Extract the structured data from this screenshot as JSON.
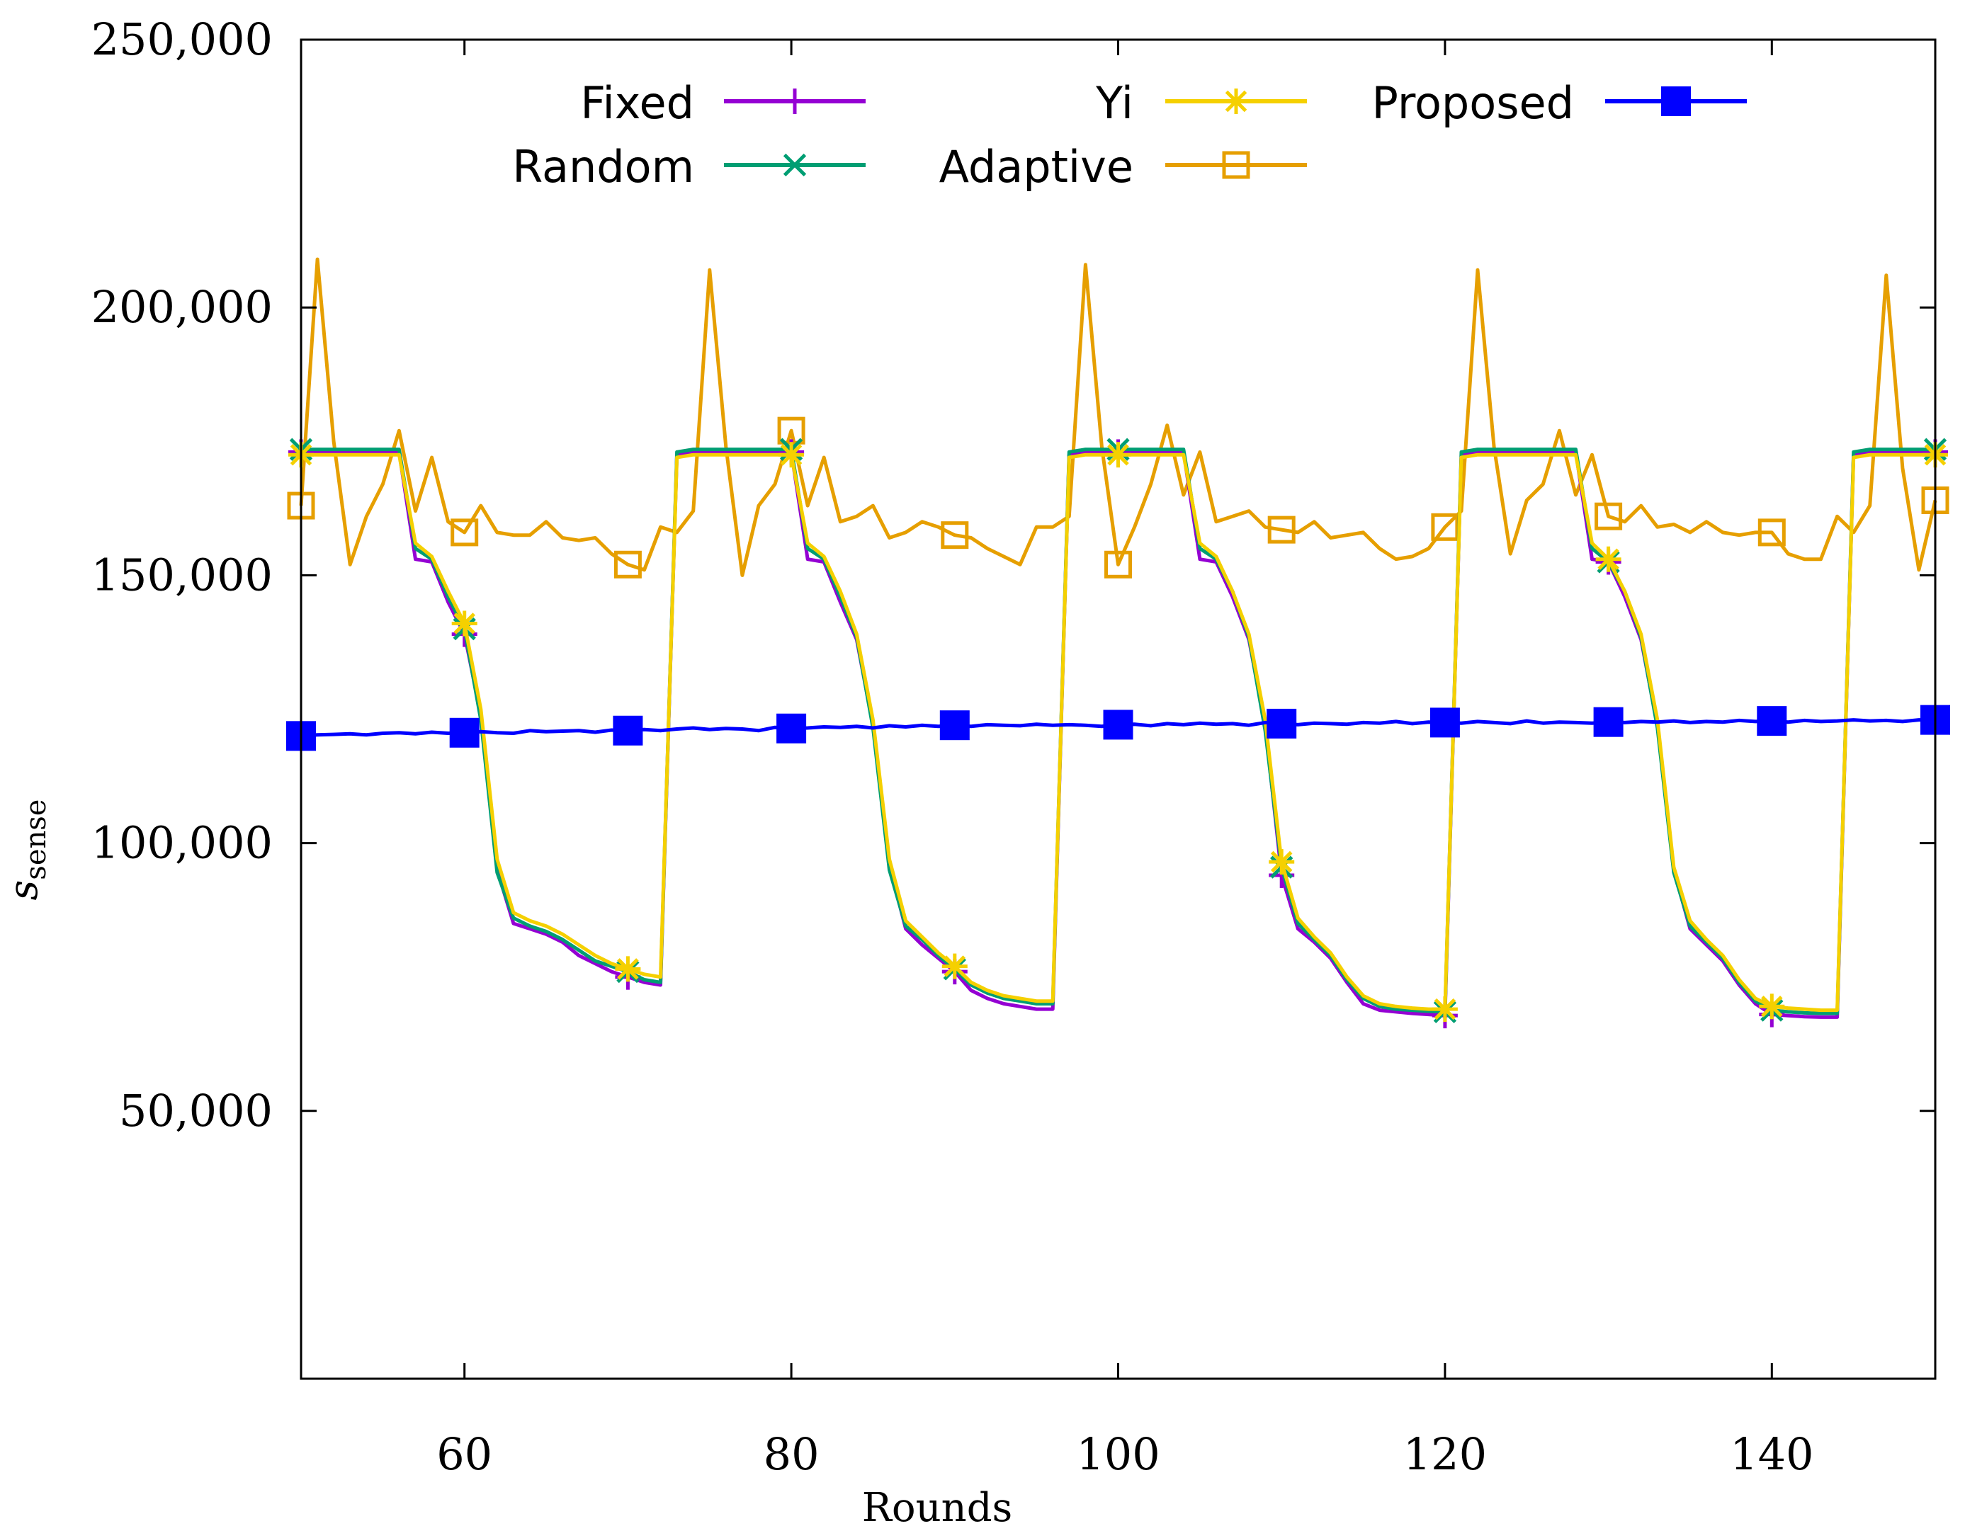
{
  "chart_data": {
    "type": "line",
    "title": "",
    "xlabel": "Rounds",
    "ylabel_main": "s",
    "ylabel_sub": "sense",
    "xlim": [
      50,
      150
    ],
    "ylim": [
      0,
      250000
    ],
    "xticks": [
      60,
      80,
      100,
      120,
      140
    ],
    "xtick_labels": [
      "60",
      "80",
      "100",
      "120",
      "140"
    ],
    "yticks": [
      50000,
      100000,
      150000,
      200000,
      250000
    ],
    "ytick_labels": [
      "50,000",
      "100,000",
      "150,000",
      "200,000",
      "250,000"
    ],
    "legend": [
      "Fixed",
      "Random",
      "Yi",
      "Adaptive",
      "Proposed"
    ],
    "legend_position": "top",
    "colors": {
      "Fixed": "#9400d3",
      "Random": "#009e73",
      "Yi": "#f5d000",
      "Adaptive": "#e69f00",
      "Proposed": "#0000ff"
    },
    "series": [
      {
        "name": "Fixed",
        "marker": "plus",
        "marker_every": 10,
        "x": [
          50,
          51,
          52,
          53,
          54,
          55,
          56,
          57,
          58,
          59,
          60,
          61,
          62,
          63,
          64,
          65,
          66,
          67,
          68,
          69,
          70,
          71,
          72,
          73,
          74,
          75,
          76,
          77,
          78,
          79,
          80,
          81,
          82,
          83,
          84,
          85,
          86,
          87,
          88,
          89,
          90,
          91,
          92,
          93,
          94,
          95,
          96,
          97,
          98,
          99,
          100,
          101,
          102,
          103,
          104,
          105,
          106,
          107,
          108,
          109,
          110,
          111,
          112,
          113,
          114,
          115,
          116,
          117,
          118,
          119,
          120,
          121,
          122,
          123,
          124,
          125,
          126,
          127,
          128,
          129,
          130,
          131,
          132,
          133,
          134,
          135,
          136,
          137,
          138,
          139,
          140,
          141,
          142,
          143,
          144,
          145,
          146,
          147,
          148,
          149,
          150
        ],
        "y": [
          173000,
          173000,
          173000,
          173000,
          173000,
          173000,
          173000,
          153000,
          152500,
          145000,
          139000,
          124000,
          95000,
          85000,
          84000,
          83000,
          81500,
          79000,
          77500,
          76000,
          75000,
          74000,
          73500,
          172500,
          173000,
          173000,
          173000,
          173000,
          173000,
          173000,
          173000,
          153000,
          152500,
          145000,
          138000,
          122000,
          96000,
          84000,
          81000,
          78500,
          76000,
          72500,
          71000,
          70000,
          69500,
          69000,
          69000,
          172500,
          173000,
          173000,
          173000,
          173000,
          173000,
          173000,
          173000,
          153000,
          152500,
          146000,
          138000,
          122000,
          94000,
          84000,
          81500,
          78500,
          74000,
          70000,
          68800,
          68500,
          68200,
          68000,
          67800,
          172500,
          173000,
          173000,
          173000,
          173000,
          173000,
          173000,
          173000,
          153000,
          152500,
          146000,
          138000,
          122000,
          95000,
          84000,
          81000,
          78000,
          73500,
          70000,
          68000,
          67800,
          67600,
          67500,
          67500,
          172500,
          173000,
          173000,
          173000,
          173000,
          173000
        ]
      },
      {
        "name": "Random",
        "marker": "cross",
        "marker_every": 10,
        "x": [
          50,
          51,
          52,
          53,
          54,
          55,
          56,
          57,
          58,
          59,
          60,
          61,
          62,
          63,
          64,
          65,
          66,
          67,
          68,
          69,
          70,
          71,
          72,
          73,
          74,
          75,
          76,
          77,
          78,
          79,
          80,
          81,
          82,
          83,
          84,
          85,
          86,
          87,
          88,
          89,
          90,
          91,
          92,
          93,
          94,
          95,
          96,
          97,
          98,
          99,
          100,
          101,
          102,
          103,
          104,
          105,
          106,
          107,
          108,
          109,
          110,
          111,
          112,
          113,
          114,
          115,
          116,
          117,
          118,
          119,
          120,
          121,
          122,
          123,
          124,
          125,
          126,
          127,
          128,
          129,
          130,
          131,
          132,
          133,
          134,
          135,
          136,
          137,
          138,
          139,
          140,
          141,
          142,
          143,
          144,
          145,
          146,
          147,
          148,
          149,
          150
        ],
        "y": [
          173500,
          173500,
          173500,
          173500,
          173500,
          173500,
          173500,
          155000,
          153000,
          146000,
          140000,
          123000,
          94500,
          86000,
          84500,
          83500,
          82000,
          80000,
          78000,
          77000,
          76000,
          74500,
          74000,
          173000,
          173500,
          173500,
          173500,
          173500,
          173500,
          173500,
          173500,
          155000,
          153000,
          146000,
          138500,
          121500,
          95000,
          84500,
          82000,
          79000,
          76500,
          73500,
          72000,
          71000,
          70500,
          70000,
          70000,
          173000,
          173500,
          173500,
          173500,
          173500,
          173500,
          173500,
          173500,
          155000,
          153000,
          147000,
          138500,
          121000,
          95500,
          85000,
          82000,
          79000,
          74500,
          71000,
          69500,
          69000,
          68800,
          68600,
          68500,
          173000,
          173500,
          173500,
          173500,
          173500,
          173500,
          173500,
          173500,
          155000,
          152500,
          147000,
          138500,
          121500,
          94500,
          84500,
          81500,
          78500,
          74000,
          70500,
          68800,
          68500,
          68300,
          68200,
          68200,
          173000,
          173500,
          173500,
          173500,
          173500,
          173500
        ]
      },
      {
        "name": "Yi",
        "marker": "star",
        "marker_every": 10,
        "x": [
          50,
          51,
          52,
          53,
          54,
          55,
          56,
          57,
          58,
          59,
          60,
          61,
          62,
          63,
          64,
          65,
          66,
          67,
          68,
          69,
          70,
          71,
          72,
          73,
          74,
          75,
          76,
          77,
          78,
          79,
          80,
          81,
          82,
          83,
          84,
          85,
          86,
          87,
          88,
          89,
          90,
          91,
          92,
          93,
          94,
          95,
          96,
          97,
          98,
          99,
          100,
          101,
          102,
          103,
          104,
          105,
          106,
          107,
          108,
          109,
          110,
          111,
          112,
          113,
          114,
          115,
          116,
          117,
          118,
          119,
          120,
          121,
          122,
          123,
          124,
          125,
          126,
          127,
          128,
          129,
          130,
          131,
          132,
          133,
          134,
          135,
          136,
          137,
          138,
          139,
          140,
          141,
          142,
          143,
          144,
          145,
          146,
          147,
          148,
          149,
          150
        ],
        "y": [
          172500,
          172500,
          172500,
          172500,
          172500,
          172500,
          172500,
          156000,
          153500,
          147000,
          141000,
          125000,
          97000,
          87000,
          85500,
          84500,
          83000,
          81000,
          79000,
          77500,
          76500,
          75500,
          75000,
          172000,
          172500,
          172500,
          172500,
          172500,
          172500,
          172500,
          172500,
          156000,
          153500,
          147000,
          139000,
          123000,
          97000,
          85500,
          82500,
          79500,
          77000,
          74000,
          72500,
          71500,
          71000,
          70500,
          70500,
          172000,
          172500,
          172500,
          172500,
          172500,
          172500,
          172500,
          172500,
          156000,
          153500,
          147000,
          139000,
          123000,
          96500,
          86000,
          82500,
          79500,
          75000,
          71500,
          70000,
          69500,
          69200,
          69000,
          69000,
          172000,
          172500,
          172500,
          172500,
          172500,
          172500,
          172500,
          172500,
          156000,
          153000,
          147000,
          139000,
          123000,
          95500,
          85500,
          82000,
          79000,
          74500,
          71000,
          69500,
          69200,
          69000,
          68800,
          68800,
          172000,
          172500,
          172500,
          172500,
          172500,
          172500
        ]
      },
      {
        "name": "Adaptive",
        "marker": "square-open",
        "marker_every": 10,
        "x": [
          50,
          51,
          52,
          53,
          54,
          55,
          56,
          57,
          58,
          59,
          60,
          61,
          62,
          63,
          64,
          65,
          66,
          67,
          68,
          69,
          70,
          71,
          72,
          73,
          74,
          75,
          76,
          77,
          78,
          79,
          80,
          81,
          82,
          83,
          84,
          85,
          86,
          87,
          88,
          89,
          90,
          91,
          92,
          93,
          94,
          95,
          96,
          97,
          98,
          99,
          100,
          101,
          102,
          103,
          104,
          105,
          106,
          107,
          108,
          109,
          110,
          111,
          112,
          113,
          114,
          115,
          116,
          117,
          118,
          119,
          120,
          121,
          122,
          123,
          124,
          125,
          126,
          127,
          128,
          129,
          130,
          131,
          132,
          133,
          134,
          135,
          136,
          137,
          138,
          139,
          140,
          141,
          142,
          143,
          144,
          145,
          146,
          147,
          148,
          149,
          150
        ],
        "y": [
          163000,
          209000,
          175000,
          152000,
          161000,
          167000,
          177000,
          162000,
          172000,
          160000,
          158000,
          163000,
          158000,
          157500,
          157500,
          160000,
          157000,
          156500,
          157000,
          154000,
          152000,
          151000,
          159000,
          158000,
          162000,
          207000,
          174000,
          150000,
          163000,
          167000,
          177000,
          163000,
          172000,
          160000,
          161000,
          163000,
          157000,
          158000,
          160000,
          159000,
          157500,
          157000,
          155000,
          153500,
          152000,
          159000,
          159000,
          161000,
          208000,
          174000,
          152000,
          159000,
          167000,
          178000,
          165000,
          173000,
          160000,
          161000,
          162000,
          159000,
          158500,
          158000,
          160000,
          157000,
          157500,
          158000,
          155000,
          153000,
          153500,
          155000,
          159000,
          162000,
          207000,
          174000,
          154000,
          164000,
          167000,
          177000,
          165000,
          172500,
          161000,
          160000,
          163000,
          159000,
          159500,
          158000,
          160000,
          158000,
          157500,
          158000,
          158000,
          154000,
          153000,
          153000,
          161000,
          158000,
          163000,
          206000,
          170000,
          151000,
          164000
        ]
      },
      {
        "name": "Proposed",
        "marker": "square-filled",
        "marker_every": 10,
        "x": [
          50,
          51,
          52,
          53,
          54,
          55,
          56,
          57,
          58,
          59,
          60,
          61,
          62,
          63,
          64,
          65,
          66,
          67,
          68,
          69,
          70,
          71,
          72,
          73,
          74,
          75,
          76,
          77,
          78,
          79,
          80,
          81,
          82,
          83,
          84,
          85,
          86,
          87,
          88,
          89,
          90,
          91,
          92,
          93,
          94,
          95,
          96,
          97,
          98,
          99,
          100,
          101,
          102,
          103,
          104,
          105,
          106,
          107,
          108,
          109,
          110,
          111,
          112,
          113,
          114,
          115,
          116,
          117,
          118,
          119,
          120,
          121,
          122,
          123,
          124,
          125,
          126,
          127,
          128,
          129,
          130,
          131,
          132,
          133,
          134,
          135,
          136,
          137,
          138,
          139,
          140,
          141,
          142,
          143,
          144,
          145,
          146,
          147,
          148,
          149,
          150
        ],
        "y": [
          120000,
          120200,
          120300,
          120400,
          120200,
          120500,
          120600,
          120400,
          120700,
          120500,
          120600,
          120800,
          120600,
          120500,
          121000,
          120800,
          120900,
          121000,
          120700,
          121100,
          121000,
          121200,
          121000,
          121300,
          121500,
          121200,
          121400,
          121300,
          121000,
          121600,
          121400,
          121500,
          121700,
          121600,
          121800,
          121500,
          121900,
          121700,
          122000,
          121800,
          122000,
          121800,
          122100,
          122000,
          121900,
          122200,
          122000,
          122100,
          122000,
          121800,
          122100,
          122200,
          121900,
          122300,
          122100,
          122400,
          122200,
          122300,
          122000,
          122500,
          122300,
          122100,
          122400,
          122300,
          122200,
          122500,
          122400,
          122700,
          122300,
          122600,
          122500,
          122400,
          122700,
          122500,
          122300,
          122800,
          122400,
          122600,
          122500,
          122400,
          122600,
          122500,
          122700,
          122600,
          122800,
          122500,
          122700,
          122600,
          122900,
          122700,
          122800,
          122600,
          122900,
          122700,
          122800,
          123000,
          122800,
          122900,
          122700,
          123000,
          123000
        ]
      }
    ]
  }
}
